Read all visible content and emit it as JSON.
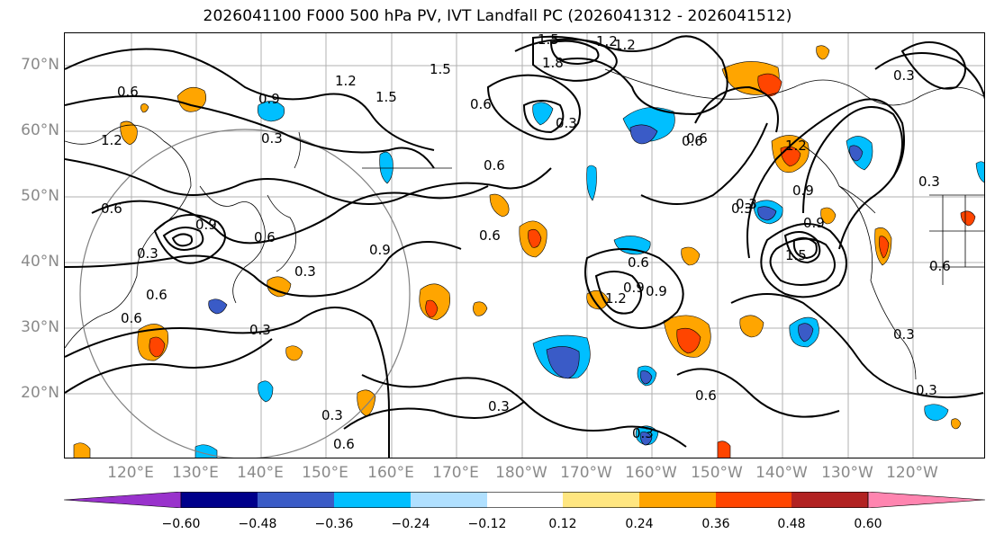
{
  "title": "2026041100 F000 500 hPa PV, IVT Landfall PC (2026041312 - 2026041512)",
  "map": {
    "projection": "PlateCarree",
    "lon_range": [
      "110°E",
      "115°W"
    ],
    "lat_range": [
      "10°N",
      "75°N"
    ],
    "lat_labels": [
      "70°N",
      "60°N",
      "50°N",
      "40°N",
      "30°N",
      "20°N"
    ],
    "lon_labels": [
      "120°E",
      "130°E",
      "140°E",
      "150°E",
      "160°E",
      "170°E",
      "180°W",
      "170°W",
      "160°W",
      "150°W",
      "140°W",
      "130°W",
      "120°W"
    ],
    "contour_labels": [
      "1.5",
      "1.2",
      "1.8",
      "1.2",
      "1.5",
      "1.2",
      "0.6",
      "1.5",
      "0.6",
      "0.9",
      "0.6",
      "0.3",
      "0.6",
      "0.3",
      "0.6",
      "0.9",
      "0.3",
      "0.9",
      "0.6",
      "0.3",
      "0.9",
      "0.6",
      "0.3",
      "0.9",
      "1.2",
      "0.6",
      "0.3",
      "0.6",
      "0.3",
      "0.3",
      "0.6",
      "0.3",
      "0.3",
      "0.6",
      "0.3",
      "0.3",
      "1.2",
      "0.9",
      "0.6",
      "0.3",
      "0.3",
      "0.6",
      "0.9",
      "0.6",
      "1.5",
      "1.2"
    ],
    "contour_color": "#000000",
    "grid_color": "#b0b0b0",
    "circle_color": "#808080"
  },
  "colorbar": {
    "ticks": [
      "−0.60",
      "−0.48",
      "−0.36",
      "−0.24",
      "−0.12",
      "0.12",
      "0.24",
      "0.36",
      "0.48",
      "0.60"
    ],
    "colors": [
      "#9932cc",
      "#00008b",
      "#3a5bc7",
      "#00bfff",
      "#b0e0ff",
      "#ffffff",
      "#ffe680",
      "#ffa500",
      "#ff4500",
      "#b22222",
      "#ff85b0"
    ],
    "extend": "both"
  }
}
